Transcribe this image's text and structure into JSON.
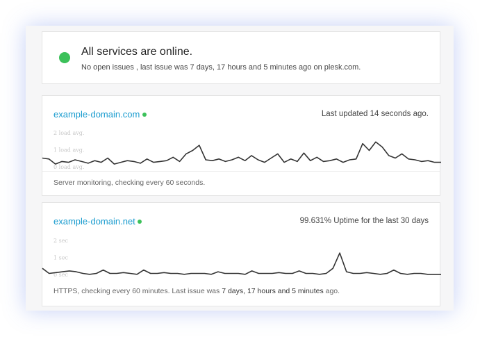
{
  "status": {
    "title": "All services are online.",
    "message": "No open issues , last issue was 7 days, 17 hours and 5 minutes ago on plesk.com."
  },
  "monitors": [
    {
      "name": "example-domain.com",
      "info": "Last updated 14 seconds ago.",
      "footer": [
        "Server monitoring, checking every 60 seconds."
      ],
      "chart": {
        "type": "line",
        "color": "#333333",
        "ylim": [
          0,
          2
        ],
        "yticks": [
          {
            "value": 0,
            "label": "0 load avg."
          },
          {
            "value": 1,
            "label": "1 load avg."
          },
          {
            "value": 2,
            "label": "2 load avg."
          }
        ],
        "values": [
          0.55,
          0.5,
          0.2,
          0.35,
          0.3,
          0.45,
          0.35,
          0.25,
          0.4,
          0.3,
          0.55,
          0.2,
          0.3,
          0.4,
          0.35,
          0.25,
          0.5,
          0.3,
          0.35,
          0.4,
          0.6,
          0.35,
          0.8,
          1.0,
          1.3,
          0.45,
          0.4,
          0.5,
          0.35,
          0.45,
          0.6,
          0.4,
          0.7,
          0.45,
          0.3,
          0.55,
          0.8,
          0.3,
          0.5,
          0.35,
          0.85,
          0.4,
          0.6,
          0.35,
          0.4,
          0.5,
          0.3,
          0.45,
          0.5,
          1.4,
          1.0,
          1.5,
          1.2,
          0.7,
          0.55,
          0.8,
          0.5,
          0.45,
          0.35,
          0.4,
          0.3,
          0.3
        ]
      }
    },
    {
      "name": "example-domain.net",
      "info": "99.631% Uptime for the last 30 days",
      "footer": [
        "HTTPS, checking every 60 minutes. Last issue was",
        "7 days, 17 hours and 5 minutes",
        "ago."
      ],
      "chart": {
        "type": "line",
        "color": "#333333",
        "ylim": [
          0,
          2
        ],
        "yticks": [
          {
            "value": 0,
            "label": "0 sec"
          },
          {
            "value": 1,
            "label": "1 sec"
          },
          {
            "value": 2,
            "label": "2 sec"
          }
        ],
        "values": [
          0.4,
          0.1,
          0.15,
          0.2,
          0.25,
          0.2,
          0.1,
          0.05,
          0.1,
          0.3,
          0.1,
          0.1,
          0.15,
          0.1,
          0.05,
          0.3,
          0.1,
          0.1,
          0.15,
          0.1,
          0.1,
          0.05,
          0.1,
          0.1,
          0.1,
          0.05,
          0.2,
          0.1,
          0.1,
          0.1,
          0.05,
          0.25,
          0.1,
          0.1,
          0.1,
          0.15,
          0.1,
          0.1,
          0.25,
          0.1,
          0.1,
          0.05,
          0.1,
          0.4,
          1.3,
          0.2,
          0.1,
          0.1,
          0.15,
          0.1,
          0.05,
          0.1,
          0.3,
          0.1,
          0.05,
          0.1,
          0.1,
          0.05,
          0.05,
          0.05
        ]
      }
    }
  ]
}
